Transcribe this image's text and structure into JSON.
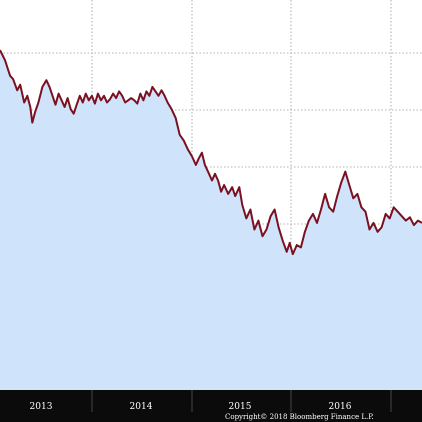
{
  "chart_data": {
    "type": "area",
    "x_tick_labels": [
      "2013",
      "2014",
      "2015",
      "2016"
    ],
    "grid": true,
    "colors": {
      "line": "#7a1020",
      "fill": "#cfe4fb",
      "axis_band": "#0b0b0b",
      "grid": "#9a9a9a",
      "label_text": "#ffffff"
    },
    "series": [
      {
        "points": [
          [
            2012.6,
            92.5
          ],
          [
            2012.65,
            88.0
          ],
          [
            2012.7,
            81.0
          ],
          [
            2012.73,
            79.5
          ],
          [
            2012.77,
            74.5
          ],
          [
            2012.8,
            77.0
          ],
          [
            2012.84,
            69.0
          ],
          [
            2012.87,
            72.0
          ],
          [
            2012.9,
            67.0
          ],
          [
            2012.92,
            60.0
          ],
          [
            2012.95,
            65.0
          ],
          [
            2012.98,
            69.0
          ],
          [
            2013.02,
            76.0
          ],
          [
            2013.06,
            79.0
          ],
          [
            2013.09,
            76.0
          ],
          [
            2013.12,
            72.0
          ],
          [
            2013.15,
            68.0
          ],
          [
            2013.18,
            73.0
          ],
          [
            2013.21,
            70.0
          ],
          [
            2013.24,
            67.0
          ],
          [
            2013.27,
            71.0
          ],
          [
            2013.3,
            66.0
          ],
          [
            2013.33,
            64.0
          ],
          [
            2013.36,
            68.0
          ],
          [
            2013.39,
            72.0
          ],
          [
            2013.42,
            69.0
          ],
          [
            2013.45,
            73.0
          ],
          [
            2013.48,
            70.0
          ],
          [
            2013.51,
            72.0
          ],
          [
            2013.54,
            68.5
          ],
          [
            2013.57,
            73.0
          ],
          [
            2013.6,
            70.0
          ],
          [
            2013.63,
            72.0
          ],
          [
            2013.66,
            69.0
          ],
          [
            2013.69,
            70.5
          ],
          [
            2013.72,
            73.0
          ],
          [
            2013.75,
            71.0
          ],
          [
            2013.78,
            74.0
          ],
          [
            2013.81,
            72.0
          ],
          [
            2013.84,
            69.0
          ],
          [
            2013.87,
            70.0
          ],
          [
            2013.9,
            71.0
          ],
          [
            2013.93,
            70.0
          ],
          [
            2013.96,
            68.5
          ],
          [
            2013.99,
            73.0
          ],
          [
            2014.02,
            70.0
          ],
          [
            2014.05,
            74.0
          ],
          [
            2014.08,
            72.0
          ],
          [
            2014.11,
            76.0
          ],
          [
            2014.14,
            74.0
          ],
          [
            2014.17,
            72.0
          ],
          [
            2014.2,
            74.5
          ],
          [
            2014.23,
            72.0
          ],
          [
            2014.26,
            69.0
          ],
          [
            2014.3,
            66.0
          ],
          [
            2014.34,
            62.0
          ],
          [
            2014.38,
            54.5
          ],
          [
            2014.42,
            52.0
          ],
          [
            2014.46,
            48.0
          ],
          [
            2014.5,
            45.0
          ],
          [
            2014.54,
            41.0
          ],
          [
            2014.57,
            44.0
          ],
          [
            2014.6,
            46.5
          ],
          [
            2014.63,
            41.0
          ],
          [
            2014.66,
            38.0
          ],
          [
            2014.7,
            34.0
          ],
          [
            2014.73,
            37.0
          ],
          [
            2014.76,
            34.0
          ],
          [
            2014.79,
            29.0
          ],
          [
            2014.82,
            32.0
          ],
          [
            2014.86,
            28.0
          ],
          [
            2014.9,
            31.0
          ],
          [
            2014.93,
            27.0
          ],
          [
            2014.97,
            31.0
          ],
          [
            2015.0,
            23.0
          ],
          [
            2015.04,
            17.0
          ],
          [
            2015.08,
            21.0
          ],
          [
            2015.12,
            12.0
          ],
          [
            2015.16,
            16.0
          ],
          [
            2015.2,
            9.0
          ],
          [
            2015.24,
            12.0
          ],
          [
            2015.28,
            18.0
          ],
          [
            2015.32,
            21.0
          ],
          [
            2015.36,
            13.0
          ],
          [
            2015.4,
            7.0
          ],
          [
            2015.44,
            2.0
          ],
          [
            2015.47,
            6.0
          ],
          [
            2015.5,
            1.0
          ],
          [
            2015.54,
            5.0
          ],
          [
            2015.58,
            4.0
          ],
          [
            2015.62,
            11.0
          ],
          [
            2015.66,
            16.0
          ],
          [
            2015.7,
            19.0
          ],
          [
            2015.74,
            15.0
          ],
          [
            2015.78,
            21.0
          ],
          [
            2015.82,
            28.0
          ],
          [
            2015.86,
            22.0
          ],
          [
            2015.9,
            20.0
          ],
          [
            2015.94,
            27.0
          ],
          [
            2015.98,
            33.0
          ],
          [
            2016.02,
            38.0
          ],
          [
            2016.06,
            32.0
          ],
          [
            2016.1,
            26.0
          ],
          [
            2016.14,
            28.0
          ],
          [
            2016.18,
            22.0
          ],
          [
            2016.22,
            20.0
          ],
          [
            2016.26,
            12.0
          ],
          [
            2016.3,
            15.0
          ],
          [
            2016.34,
            11.0
          ],
          [
            2016.38,
            13.0
          ],
          [
            2016.42,
            19.0
          ],
          [
            2016.46,
            17.0
          ],
          [
            2016.5,
            22.0
          ],
          [
            2016.54,
            20.0
          ],
          [
            2016.58,
            18.0
          ],
          [
            2016.62,
            16.0
          ],
          [
            2016.66,
            17.5
          ],
          [
            2016.7,
            14.0
          ],
          [
            2016.74,
            16.0
          ],
          [
            2016.78,
            15.0
          ]
        ]
      }
    ]
  }
}
